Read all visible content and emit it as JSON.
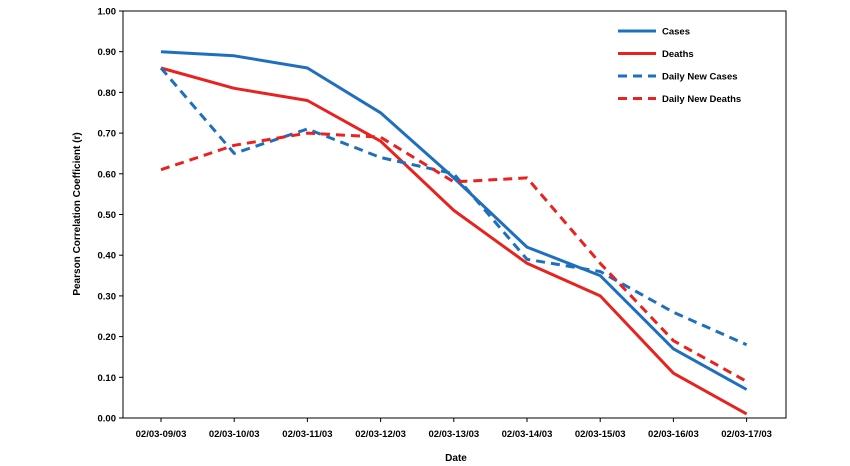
{
  "chart_data": {
    "type": "line",
    "title": "",
    "xlabel": "Date",
    "ylabel": "Pearson Correlation Coefficient (r)",
    "categories": [
      "02/03-09/03",
      "02/03-10/03",
      "02/03-11/03",
      "02/03-12/03",
      "02/03-13/03",
      "02/03-14/03",
      "02/03-15/03",
      "02/03-16/03",
      "02/03-17/03"
    ],
    "ylim": [
      0,
      1
    ],
    "yticks": [
      "0.00",
      "0.10",
      "0.20",
      "0.30",
      "0.40",
      "0.50",
      "0.60",
      "0.70",
      "0.80",
      "0.90",
      "1.00"
    ],
    "grid": false,
    "legend": "top-right",
    "series": [
      {
        "name": "Cases",
        "color": "#1f6fbf",
        "style": "solid",
        "values": [
          0.9,
          0.89,
          0.86,
          0.75,
          0.59,
          0.42,
          0.35,
          0.17,
          0.07
        ]
      },
      {
        "name": "Deaths",
        "color": "#e8231f",
        "style": "solid",
        "values": [
          0.86,
          0.81,
          0.78,
          0.68,
          0.51,
          0.38,
          0.3,
          0.11,
          0.01
        ]
      },
      {
        "name": "Daily New Cases",
        "color": "#1f6fbf",
        "style": "dashed",
        "values": [
          0.86,
          0.65,
          0.71,
          0.64,
          0.6,
          0.39,
          0.36,
          0.26,
          0.18
        ]
      },
      {
        "name": "Daily New Deaths",
        "color": "#e8231f",
        "style": "dashed",
        "values": [
          0.61,
          0.67,
          0.7,
          0.69,
          0.58,
          0.59,
          0.38,
          0.19,
          0.09
        ]
      }
    ]
  }
}
